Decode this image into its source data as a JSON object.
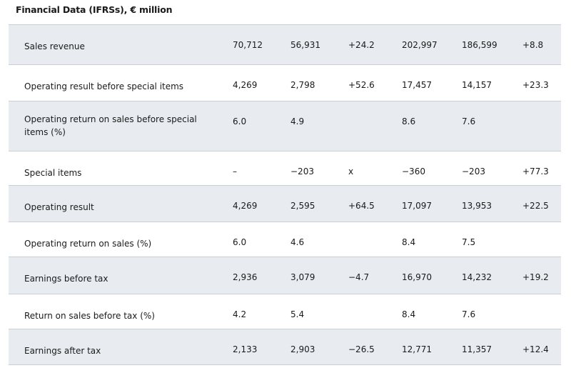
{
  "title": "Financial Data (IFRSs), € million",
  "rows": [
    {
      "label": "Sales revenue",
      "values": [
        "70,712",
        "56,931",
        "+24.2",
        "202,997",
        "186,599",
        "+8.8"
      ],
      "shaded": true
    },
    {
      "label": "Operating result before special items",
      "values": [
        "4,269",
        "2,798",
        "+52.6",
        "17,457",
        "14,157",
        "+23.3"
      ],
      "shaded": false
    },
    {
      "label": "Operating return on sales before special items (%)",
      "values": [
        "6.0",
        "4.9",
        "",
        "8.6",
        "7.6",
        ""
      ],
      "shaded": true
    },
    {
      "label": "Special items",
      "values": [
        "–",
        "−203",
        "x",
        "−360",
        "−203",
        "+77.3"
      ],
      "shaded": false
    },
    {
      "label": "Operating result",
      "values": [
        "4,269",
        "2,595",
        "+64.5",
        "17,097",
        "13,953",
        "+22.5"
      ],
      "shaded": true
    },
    {
      "label": "Operating return on sales (%)",
      "values": [
        "6.0",
        "4.6",
        "",
        "8.4",
        "7.5",
        ""
      ],
      "shaded": false
    },
    {
      "label": "Earnings before tax",
      "values": [
        "2,936",
        "3,079",
        "−4.7",
        "16,970",
        "14,232",
        "+19.2"
      ],
      "shaded": true
    },
    {
      "label": "Return on sales before tax (%)",
      "values": [
        "4.2",
        "5.4",
        "",
        "8.4",
        "7.6",
        ""
      ],
      "shaded": false
    },
    {
      "label": "Earnings after tax",
      "values": [
        "2,133",
        "2,903",
        "−26.5",
        "12,771",
        "11,357",
        "+12.4"
      ],
      "shaded": true
    }
  ]
}
